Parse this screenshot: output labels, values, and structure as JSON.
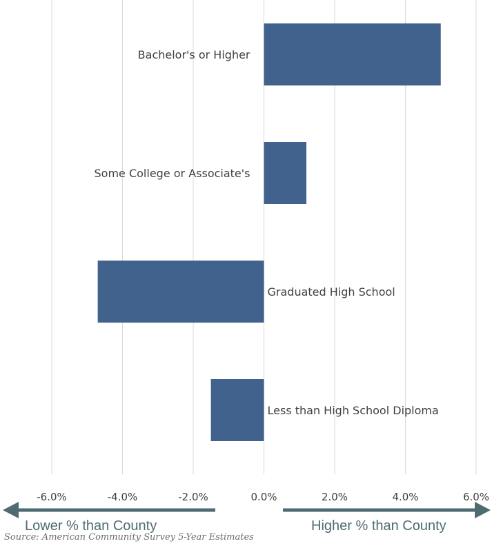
{
  "chart_data": {
    "type": "bar",
    "orientation": "horizontal",
    "categories": [
      "Bachelor's or Higher",
      "Some College or Associate's",
      "Graduated High School",
      "Less than High School Diploma"
    ],
    "values": [
      5.0,
      1.2,
      -4.7,
      -1.5
    ],
    "xlim": [
      -6.0,
      6.0
    ],
    "xticks": [
      "-6.0%",
      "-4.0%",
      "-2.0%",
      "0.0%",
      "2.0%",
      "4.0%",
      "6.0%"
    ],
    "grid": true,
    "bar_color": "#41628d"
  },
  "annotations": {
    "left_arrow": "Lower % than County",
    "right_arrow": "Higher % than County",
    "arrow_color": "#4e6b72"
  },
  "source": "Source: American Community Survey 5-Year Estimates"
}
